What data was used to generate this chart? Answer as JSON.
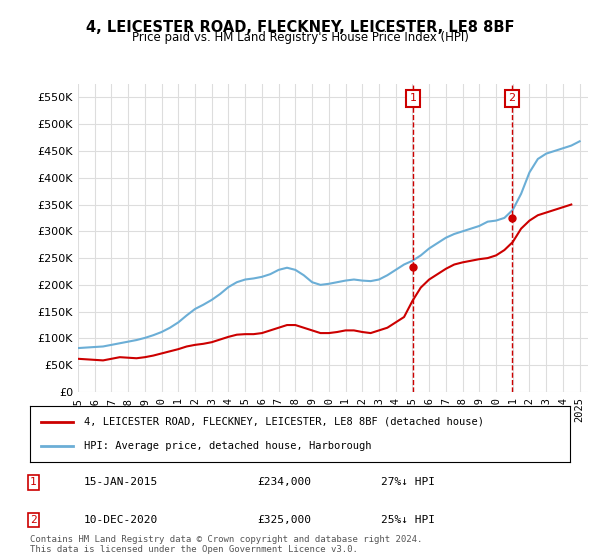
{
  "title": "4, LEICESTER ROAD, FLECKNEY, LEICESTER, LE8 8BF",
  "subtitle": "Price paid vs. HM Land Registry's House Price Index (HPI)",
  "ylabel_ticks": [
    0,
    50000,
    100000,
    150000,
    200000,
    250000,
    300000,
    350000,
    400000,
    450000,
    500000,
    550000
  ],
  "ylim": [
    0,
    575000
  ],
  "xlim_start": 1995.0,
  "xlim_end": 2025.5,
  "transaction1": {
    "date": "15-JAN-2015",
    "price": 234000,
    "pct": "27%↓ HPI",
    "x": 2015.04
  },
  "transaction2": {
    "date": "10-DEC-2020",
    "price": 325000,
    "pct": "25%↓ HPI",
    "x": 2020.95
  },
  "legend_line1": "4, LEICESTER ROAD, FLECKNEY, LEICESTER, LE8 8BF (detached house)",
  "legend_line2": "HPI: Average price, detached house, Harborough",
  "footnote": "Contains HM Land Registry data © Crown copyright and database right 2024.\nThis data is licensed under the Open Government Licence v3.0.",
  "hpi_color": "#6baed6",
  "price_color": "#cc0000",
  "marker_color": "#cc0000",
  "background_color": "#ffffff",
  "grid_color": "#dddddd",
  "xtick_years": [
    1995,
    1996,
    1997,
    1998,
    1999,
    2000,
    2001,
    2002,
    2003,
    2004,
    2005,
    2006,
    2007,
    2008,
    2009,
    2010,
    2011,
    2012,
    2013,
    2014,
    2015,
    2016,
    2017,
    2018,
    2019,
    2020,
    2021,
    2022,
    2023,
    2024,
    2025
  ],
  "hpi_x": [
    1995.0,
    1995.5,
    1996.0,
    1996.5,
    1997.0,
    1997.5,
    1998.0,
    1998.5,
    1999.0,
    1999.5,
    2000.0,
    2000.5,
    2001.0,
    2001.5,
    2002.0,
    2002.5,
    2003.0,
    2003.5,
    2004.0,
    2004.5,
    2005.0,
    2005.5,
    2006.0,
    2006.5,
    2007.0,
    2007.5,
    2008.0,
    2008.5,
    2009.0,
    2009.5,
    2010.0,
    2010.5,
    2011.0,
    2011.5,
    2012.0,
    2012.5,
    2013.0,
    2013.5,
    2014.0,
    2014.5,
    2015.0,
    2015.5,
    2016.0,
    2016.5,
    2017.0,
    2017.5,
    2018.0,
    2018.5,
    2019.0,
    2019.5,
    2020.0,
    2020.5,
    2021.0,
    2021.5,
    2022.0,
    2022.5,
    2023.0,
    2023.5,
    2024.0,
    2024.5,
    2025.0
  ],
  "hpi_y": [
    82000,
    83000,
    84000,
    85000,
    88000,
    91000,
    94000,
    97000,
    101000,
    106000,
    112000,
    120000,
    130000,
    143000,
    155000,
    163000,
    172000,
    183000,
    196000,
    205000,
    210000,
    212000,
    215000,
    220000,
    228000,
    232000,
    228000,
    218000,
    205000,
    200000,
    202000,
    205000,
    208000,
    210000,
    208000,
    207000,
    210000,
    218000,
    228000,
    238000,
    245000,
    255000,
    268000,
    278000,
    288000,
    295000,
    300000,
    305000,
    310000,
    318000,
    320000,
    325000,
    340000,
    370000,
    410000,
    435000,
    445000,
    450000,
    455000,
    460000,
    468000
  ],
  "price_x": [
    1995.0,
    1995.5,
    1996.0,
    1996.5,
    1997.0,
    1997.5,
    1998.0,
    1998.5,
    1999.0,
    1999.5,
    2000.0,
    2000.5,
    2001.0,
    2001.5,
    2002.0,
    2002.5,
    2003.0,
    2003.5,
    2004.0,
    2004.5,
    2005.0,
    2005.5,
    2006.0,
    2006.5,
    2007.0,
    2007.5,
    2008.0,
    2008.5,
    2009.0,
    2009.5,
    2010.0,
    2010.5,
    2011.0,
    2011.5,
    2012.0,
    2012.5,
    2013.0,
    2013.5,
    2014.0,
    2014.5,
    2015.0,
    2015.5,
    2016.0,
    2016.5,
    2017.0,
    2017.5,
    2018.0,
    2018.5,
    2019.0,
    2019.5,
    2020.0,
    2020.5,
    2021.0,
    2021.5,
    2022.0,
    2022.5,
    2023.0,
    2023.5,
    2024.0,
    2024.5
  ],
  "price_y": [
    62000,
    61000,
    60000,
    59000,
    62000,
    65000,
    64000,
    63000,
    65000,
    68000,
    72000,
    76000,
    80000,
    85000,
    88000,
    90000,
    93000,
    98000,
    103000,
    107000,
    108000,
    108000,
    110000,
    115000,
    120000,
    125000,
    125000,
    120000,
    115000,
    110000,
    110000,
    112000,
    115000,
    115000,
    112000,
    110000,
    115000,
    120000,
    130000,
    140000,
    170000,
    195000,
    210000,
    220000,
    230000,
    238000,
    242000,
    245000,
    248000,
    250000,
    255000,
    265000,
    280000,
    305000,
    320000,
    330000,
    335000,
    340000,
    345000,
    350000
  ]
}
